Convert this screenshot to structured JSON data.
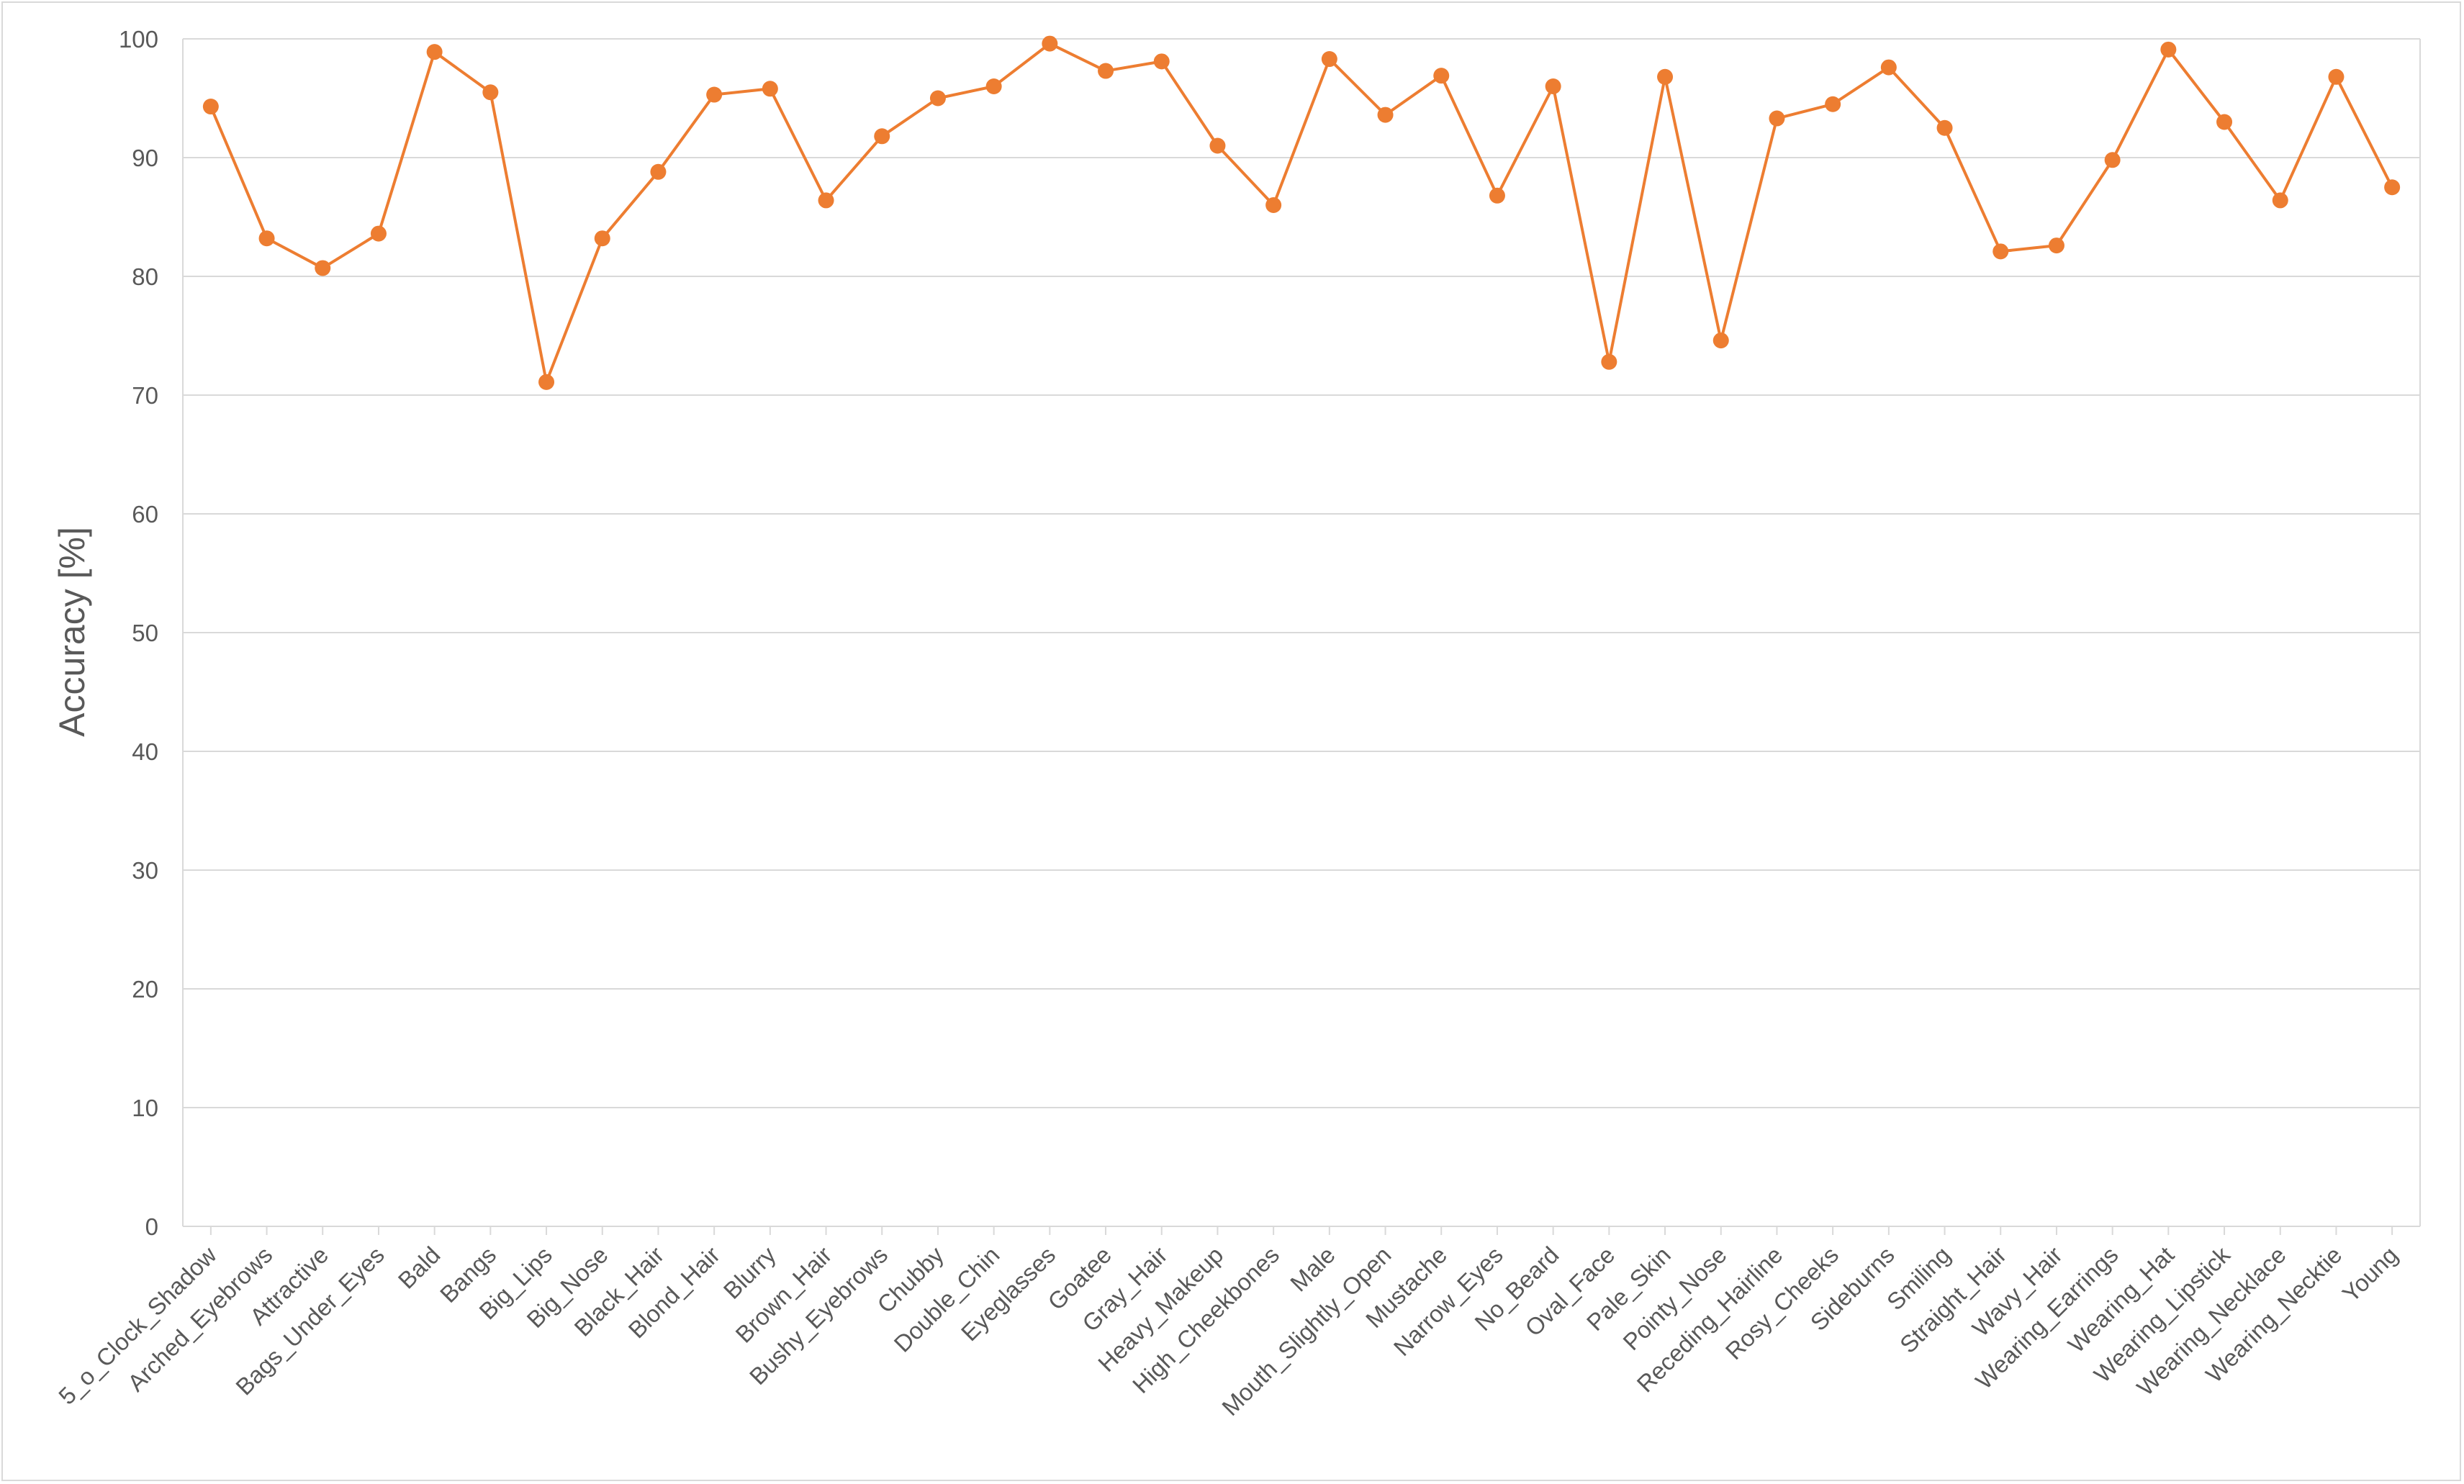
{
  "chart_data": {
    "type": "line",
    "ylabel": "Accuracy [%]",
    "xlabel": "",
    "title": "",
    "ylim": [
      0,
      100
    ],
    "yticks": [
      0,
      10,
      20,
      30,
      40,
      50,
      60,
      70,
      80,
      90,
      100
    ],
    "grid": true,
    "legend": "none",
    "series_color": "#ED7D31",
    "grid_color": "#d9d9d9",
    "categories": [
      "5_o_Clock_Shadow",
      "Arched_Eyebrows",
      "Attractive",
      "Bags_Under_Eyes",
      "Bald",
      "Bangs",
      "Big_Lips",
      "Big_Nose",
      "Black_Hair",
      "Blond_Hair",
      "Blurry",
      "Brown_Hair",
      "Bushy_Eyebrows",
      "Chubby",
      "Double_Chin",
      "Eyeglasses",
      "Goatee",
      "Gray_Hair",
      "Heavy_Makeup",
      "High_Cheekbones",
      "Male",
      "Mouth_Slightly_Open",
      "Mustache",
      "Narrow_Eyes",
      "No_Beard",
      "Oval_Face",
      "Pale_Skin",
      "Pointy_Nose",
      "Receding_Hairline",
      "Rosy_Cheeks",
      "Sideburns",
      "Smiling",
      "Straight_Hair",
      "Wavy_Hair",
      "Wearing_Earrings",
      "Wearing_Hat",
      "Wearing_Lipstick",
      "Wearing_Necklace",
      "Wearing_Necktie",
      "Young"
    ],
    "values": [
      94.3,
      83.2,
      80.7,
      83.6,
      98.9,
      95.5,
      71.1,
      83.2,
      88.8,
      95.3,
      95.8,
      86.4,
      91.8,
      95.0,
      96.0,
      99.6,
      97.3,
      98.1,
      91.0,
      86.0,
      98.3,
      93.6,
      96.9,
      86.8,
      96.0,
      72.8,
      96.8,
      74.6,
      93.3,
      94.5,
      97.6,
      92.5,
      82.1,
      82.6,
      89.8,
      99.1,
      93.0,
      86.4,
      96.8,
      87.5
    ]
  }
}
